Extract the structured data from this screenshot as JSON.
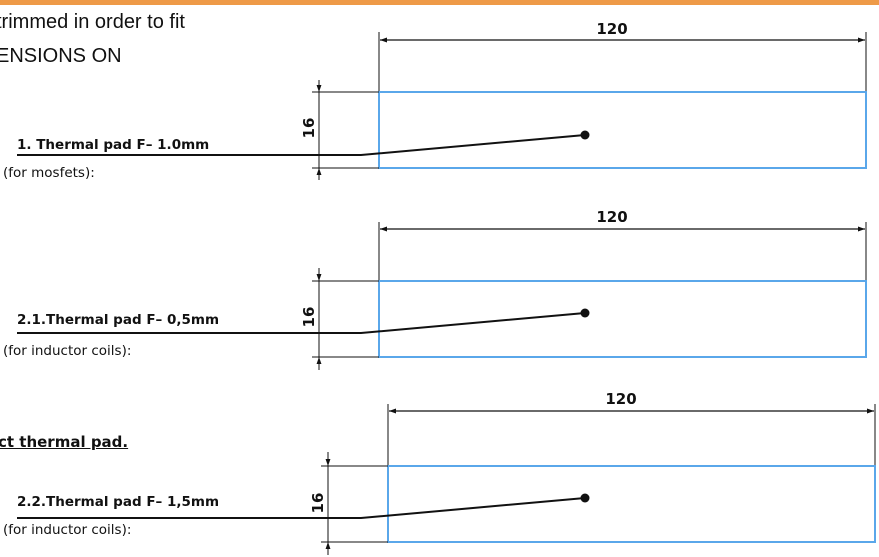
{
  "intro": {
    "line1": "trimmed in order to fit",
    "line2": "ENSIONS ON"
  },
  "note": "ct thermal pad.",
  "pads": [
    {
      "title": "1. Thermal pad F– 1.0mm",
      "subtitle": "(for mosfets):",
      "width_label": "120",
      "height_label": "16"
    },
    {
      "title": "2.1.Thermal pad F– 0,5mm",
      "subtitle": "(for inductor coils):",
      "width_label": "120",
      "height_label": "16"
    },
    {
      "title": "2.2.Thermal pad F– 1,5mm",
      "subtitle": "(for inductor coils):",
      "width_label": "120",
      "height_label": "16"
    }
  ],
  "colors": {
    "accent_bar": "#ee9a48",
    "pad_outline": "#5aa7ea",
    "line": "#111111"
  }
}
